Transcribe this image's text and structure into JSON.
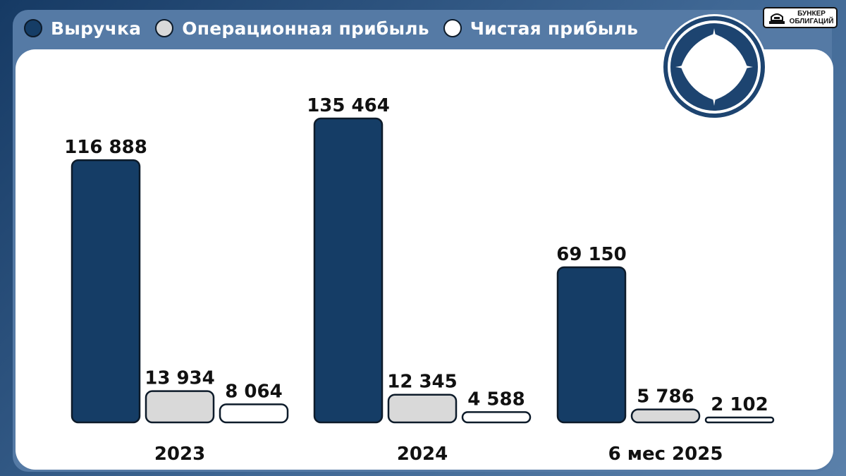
{
  "colors": {
    "revenue": "#153d66",
    "operating_profit": "#d9d9d9",
    "net_profit": "#ffffff",
    "bar_stroke": "#0d1b2a"
  },
  "brand": {
    "line1": "БУНКЕР",
    "line2": "ОБЛИГАЦИЙ",
    "icon": "bunker-icon"
  },
  "emblem": {
    "icon": "company-logo-emblem"
  },
  "chart_data": {
    "type": "bar",
    "title": "",
    "xlabel": "",
    "ylabel": "",
    "ylim": [
      0,
      135464
    ],
    "grid": false,
    "legend_position": "top-left",
    "categories": [
      "2023",
      "2024",
      "6 мес 2025"
    ],
    "series": [
      {
        "name": "Выручка",
        "values": [
          116888,
          135464,
          69150
        ],
        "labels": [
          "116 888",
          "135 464",
          "69 150"
        ]
      },
      {
        "name": "Операционная прибыль",
        "values": [
          13934,
          12345,
          5786
        ],
        "labels": [
          "13 934",
          "12 345",
          "5 786"
        ]
      },
      {
        "name": "Чистая прибыль",
        "values": [
          8064,
          4588,
          2102
        ],
        "labels": [
          "8 064",
          "4 588",
          "2 102"
        ]
      }
    ]
  }
}
